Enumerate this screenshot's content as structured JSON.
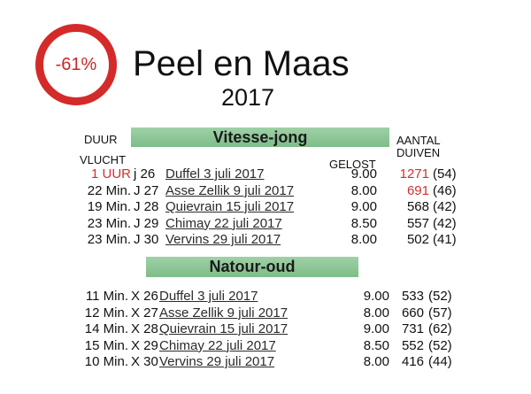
{
  "badge": "-61%",
  "title": "Peel en Maas",
  "year": "2017",
  "headers": {
    "duration": "DUUR",
    "flight": "VLUCHT",
    "released": "GELOST",
    "count": [
      "AANTAL",
      "DUIVEN"
    ]
  },
  "sections": [
    {
      "title": "Vitesse-jong",
      "rows": [
        [
          "1 UUR",
          "j 26",
          "Duffel 3 juli 2017",
          "9.00",
          "1271",
          "(54)"
        ],
        [
          "22 Min.",
          "J 27",
          "Asse Zellik 9 juli 2017",
          "8.00",
          "691",
          "(46)"
        ],
        [
          "19 Min.",
          "J 28",
          "Quievrain 15 juli 2017",
          "9.00",
          "568",
          "(42)"
        ],
        [
          "23 Min.",
          "J 29",
          "Chimay 22 juli 2017",
          "8.50",
          "557",
          "(42)"
        ],
        [
          "23 Min.",
          "J 30",
          "Vervins 29 juli 2017",
          "8.00",
          "502",
          "(41)"
        ]
      ]
    },
    {
      "title": "Natour-oud",
      "rows": [
        [
          "11 Min.",
          "X 26",
          "Duffel 3 juli 2017",
          "9.00",
          "533",
          "(52)"
        ],
        [
          "12 Min.",
          "X 27",
          "Asse Zellik 9 juli 2017",
          "8.00",
          "660",
          "(57)"
        ],
        [
          "14 Min.",
          "X 28",
          "Quievrain 15 juli 2017",
          "9.00",
          "731",
          "(62)"
        ],
        [
          "15 Min.",
          "X 29",
          "Chimay 22 juli 2017",
          "8.50",
          "552",
          "(52)"
        ],
        [
          "10 Min.",
          "X 30",
          "Vervins 29 juli 2017",
          "8.00",
          "416",
          "(44)"
        ]
      ]
    }
  ]
}
